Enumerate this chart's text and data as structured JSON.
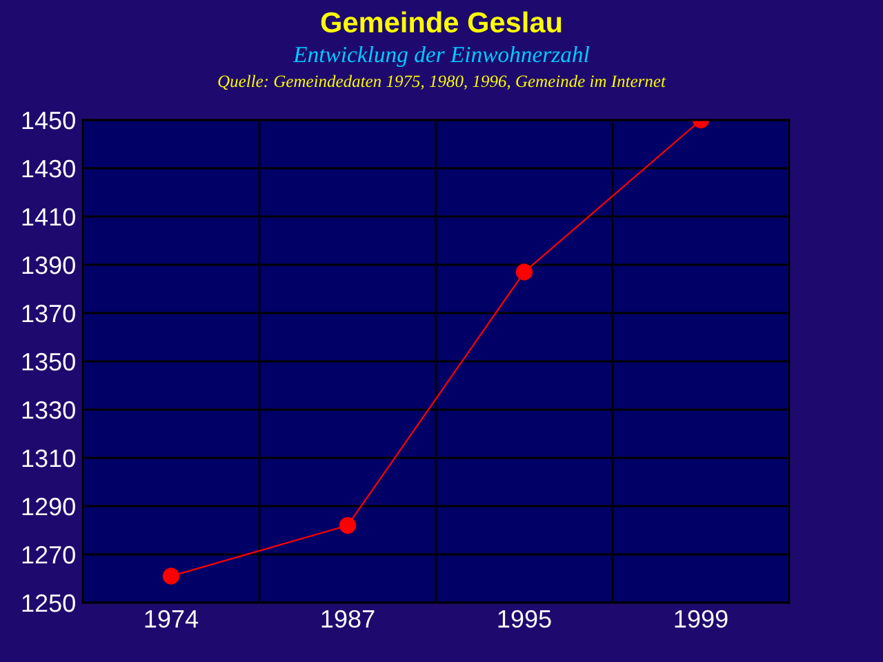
{
  "chart_data": {
    "type": "line",
    "title": "Gemeinde Geslau",
    "subtitle": "Entwicklung der Einwohnerzahl",
    "annotations": [
      "Quelle: Gemeindedaten 1975, 1980, 1996, Gemeinde im Internet"
    ],
    "categories": [
      "1974",
      "1987",
      "1995",
      "1999"
    ],
    "series": [
      {
        "color": "#ff0000",
        "values": [
          1261,
          1282,
          1387,
          1450
        ]
      }
    ],
    "ylim": [
      1250,
      1450
    ],
    "yticks": [
      1250,
      1270,
      1290,
      1310,
      1330,
      1350,
      1370,
      1390,
      1410,
      1430,
      1450
    ],
    "grid": true,
    "marker": "circle",
    "line_style": "solid"
  }
}
